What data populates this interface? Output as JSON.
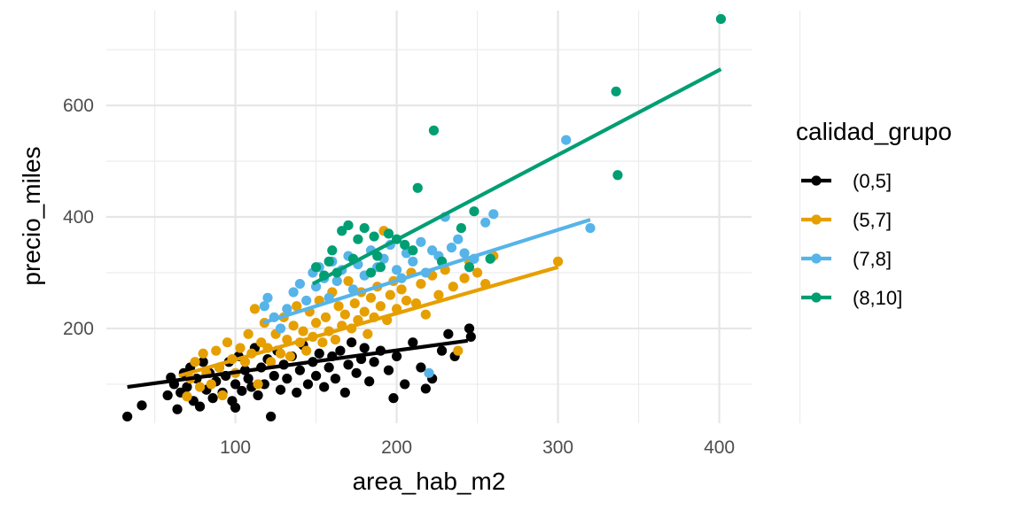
{
  "chart_data": {
    "type": "scatter",
    "xlabel": "area_hab_m2",
    "ylabel": "precio_miles",
    "xlim": [
      20,
      420
    ],
    "ylim": [
      30,
      770
    ],
    "x_ticks": [
      100,
      200,
      300,
      400
    ],
    "y_ticks": [
      200,
      400,
      600
    ],
    "grid": true,
    "legend_title": "calidad_grupo",
    "legend_position": "right",
    "series": [
      {
        "name": "(0,5]",
        "color": "#000000",
        "trend": [
          [
            33,
            95
          ],
          [
            244,
            178
          ]
        ],
        "points": [
          [
            33,
            42
          ],
          [
            42,
            62
          ],
          [
            58,
            80
          ],
          [
            60,
            112
          ],
          [
            62,
            100
          ],
          [
            64,
            55
          ],
          [
            66,
            85
          ],
          [
            68,
            120
          ],
          [
            70,
            95
          ],
          [
            72,
            130
          ],
          [
            74,
            70
          ],
          [
            76,
            110
          ],
          [
            78,
            60
          ],
          [
            80,
            140
          ],
          [
            82,
            90
          ],
          [
            84,
            120
          ],
          [
            86,
            75
          ],
          [
            88,
            105
          ],
          [
            90,
            130
          ],
          [
            92,
            85
          ],
          [
            94,
            115
          ],
          [
            96,
            140
          ],
          [
            98,
            70
          ],
          [
            100,
            100
          ],
          [
            100,
            58
          ],
          [
            102,
            150
          ],
          [
            104,
            88
          ],
          [
            106,
            125
          ],
          [
            108,
            110
          ],
          [
            110,
            95
          ],
          [
            112,
            165
          ],
          [
            114,
            80
          ],
          [
            116,
            130
          ],
          [
            118,
            100
          ],
          [
            120,
            145
          ],
          [
            122,
            42
          ],
          [
            124,
            115
          ],
          [
            126,
            160
          ],
          [
            128,
            90
          ],
          [
            130,
            135
          ],
          [
            132,
            110
          ],
          [
            135,
            150
          ],
          [
            138,
            85
          ],
          [
            140,
            125
          ],
          [
            142,
            170
          ],
          [
            145,
            100
          ],
          [
            148,
            140
          ],
          [
            150,
            115
          ],
          [
            152,
            155
          ],
          [
            155,
            95
          ],
          [
            158,
            130
          ],
          [
            160,
            150
          ],
          [
            162,
            110
          ],
          [
            165,
            160
          ],
          [
            168,
            85
          ],
          [
            170,
            135
          ],
          [
            172,
            175
          ],
          [
            175,
            120
          ],
          [
            178,
            145
          ],
          [
            180,
            165
          ],
          [
            183,
            105
          ],
          [
            186,
            140
          ],
          [
            190,
            160
          ],
          [
            195,
            125
          ],
          [
            198,
            75
          ],
          [
            200,
            150
          ],
          [
            205,
            100
          ],
          [
            210,
            175
          ],
          [
            215,
            130
          ],
          [
            218,
            92
          ],
          [
            222,
            110
          ],
          [
            228,
            160
          ],
          [
            232,
            190
          ],
          [
            236,
            150
          ],
          [
            245,
            200
          ],
          [
            246,
            185
          ]
        ]
      },
      {
        "name": "(5,7]",
        "color": "#E69F00",
        "trend": [
          [
            65,
            115
          ],
          [
            300,
            310
          ]
        ],
        "points": [
          [
            70,
            78
          ],
          [
            72,
            110
          ],
          [
            75,
            140
          ],
          [
            78,
            95
          ],
          [
            80,
            155
          ],
          [
            82,
            120
          ],
          [
            85,
            100
          ],
          [
            88,
            160
          ],
          [
            90,
            130
          ],
          [
            92,
            80
          ],
          [
            95,
            175
          ],
          [
            98,
            145
          ],
          [
            100,
            120
          ],
          [
            103,
            165
          ],
          [
            106,
            140
          ],
          [
            108,
            190
          ],
          [
            110,
            155
          ],
          [
            112,
            235
          ],
          [
            114,
            100
          ],
          [
            116,
            175
          ],
          [
            118,
            210
          ],
          [
            120,
            165
          ],
          [
            122,
            140
          ],
          [
            125,
            190
          ],
          [
            128,
            155
          ],
          [
            130,
            220
          ],
          [
            132,
            180
          ],
          [
            134,
            150
          ],
          [
            136,
            205
          ],
          [
            138,
            240
          ],
          [
            140,
            175
          ],
          [
            142,
            195
          ],
          [
            144,
            160
          ],
          [
            146,
            230
          ],
          [
            148,
            185
          ],
          [
            150,
            210
          ],
          [
            152,
            250
          ],
          [
            154,
            175
          ],
          [
            156,
            220
          ],
          [
            158,
            195
          ],
          [
            160,
            265
          ],
          [
            162,
            180
          ],
          [
            164,
            240
          ],
          [
            166,
            205
          ],
          [
            168,
            225
          ],
          [
            170,
            285
          ],
          [
            172,
            200
          ],
          [
            174,
            245
          ],
          [
            176,
            215
          ],
          [
            178,
            265
          ],
          [
            180,
            230
          ],
          [
            182,
            190
          ],
          [
            184,
            255
          ],
          [
            186,
            220
          ],
          [
            188,
            275
          ],
          [
            190,
            240
          ],
          [
            192,
            375
          ],
          [
            194,
            215
          ],
          [
            196,
            260
          ],
          [
            198,
            285
          ],
          [
            200,
            235
          ],
          [
            203,
            270
          ],
          [
            206,
            250
          ],
          [
            209,
            300
          ],
          [
            212,
            245
          ],
          [
            215,
            280
          ],
          [
            218,
            225
          ],
          [
            222,
            295
          ],
          [
            226,
            260
          ],
          [
            230,
            305
          ],
          [
            235,
            275
          ],
          [
            238,
            160
          ],
          [
            242,
            290
          ],
          [
            245,
            320
          ],
          [
            250,
            300
          ],
          [
            255,
            280
          ],
          [
            260,
            330
          ],
          [
            300,
            320
          ]
        ]
      },
      {
        "name": "(7,8]",
        "color": "#56B4E9",
        "trend": [
          [
            117,
            210
          ],
          [
            320,
            395
          ]
        ],
        "points": [
          [
            118,
            240
          ],
          [
            120,
            255
          ],
          [
            124,
            220
          ],
          [
            128,
            200
          ],
          [
            132,
            235
          ],
          [
            136,
            265
          ],
          [
            140,
            280
          ],
          [
            144,
            250
          ],
          [
            148,
            300
          ],
          [
            150,
            275
          ],
          [
            152,
            310
          ],
          [
            155,
            290
          ],
          [
            158,
            255
          ],
          [
            160,
            320
          ],
          [
            163,
            285
          ],
          [
            166,
            305
          ],
          [
            170,
            330
          ],
          [
            173,
            270
          ],
          [
            176,
            315
          ],
          [
            180,
            295
          ],
          [
            184,
            340
          ],
          [
            188,
            310
          ],
          [
            192,
            325
          ],
          [
            196,
            350
          ],
          [
            200,
            305
          ],
          [
            203,
            290
          ],
          [
            206,
            335
          ],
          [
            210,
            320
          ],
          [
            215,
            355
          ],
          [
            218,
            300
          ],
          [
            220,
            120
          ],
          [
            222,
            340
          ],
          [
            226,
            330
          ],
          [
            230,
            400
          ],
          [
            234,
            345
          ],
          [
            238,
            360
          ],
          [
            242,
            335
          ],
          [
            248,
            325
          ],
          [
            255,
            390
          ],
          [
            260,
            405
          ],
          [
            305,
            538
          ],
          [
            320,
            380
          ]
        ]
      },
      {
        "name": "(8,10]",
        "color": "#009E73",
        "trend": [
          [
            148,
            280
          ],
          [
            401,
            665
          ]
        ],
        "points": [
          [
            150,
            310
          ],
          [
            155,
            295
          ],
          [
            158,
            320
          ],
          [
            160,
            340
          ],
          [
            163,
            300
          ],
          [
            166,
            375
          ],
          [
            170,
            385
          ],
          [
            173,
            325
          ],
          [
            176,
            360
          ],
          [
            180,
            380
          ],
          [
            184,
            300
          ],
          [
            186,
            365
          ],
          [
            188,
            330
          ],
          [
            190,
            310
          ],
          [
            195,
            370
          ],
          [
            200,
            360
          ],
          [
            205,
            350
          ],
          [
            210,
            340
          ],
          [
            213,
            452
          ],
          [
            223,
            555
          ],
          [
            228,
            320
          ],
          [
            240,
            380
          ],
          [
            245,
            310
          ],
          [
            248,
            410
          ],
          [
            258,
            325
          ],
          [
            336,
            625
          ],
          [
            337,
            475
          ],
          [
            401,
            755
          ]
        ]
      }
    ]
  }
}
